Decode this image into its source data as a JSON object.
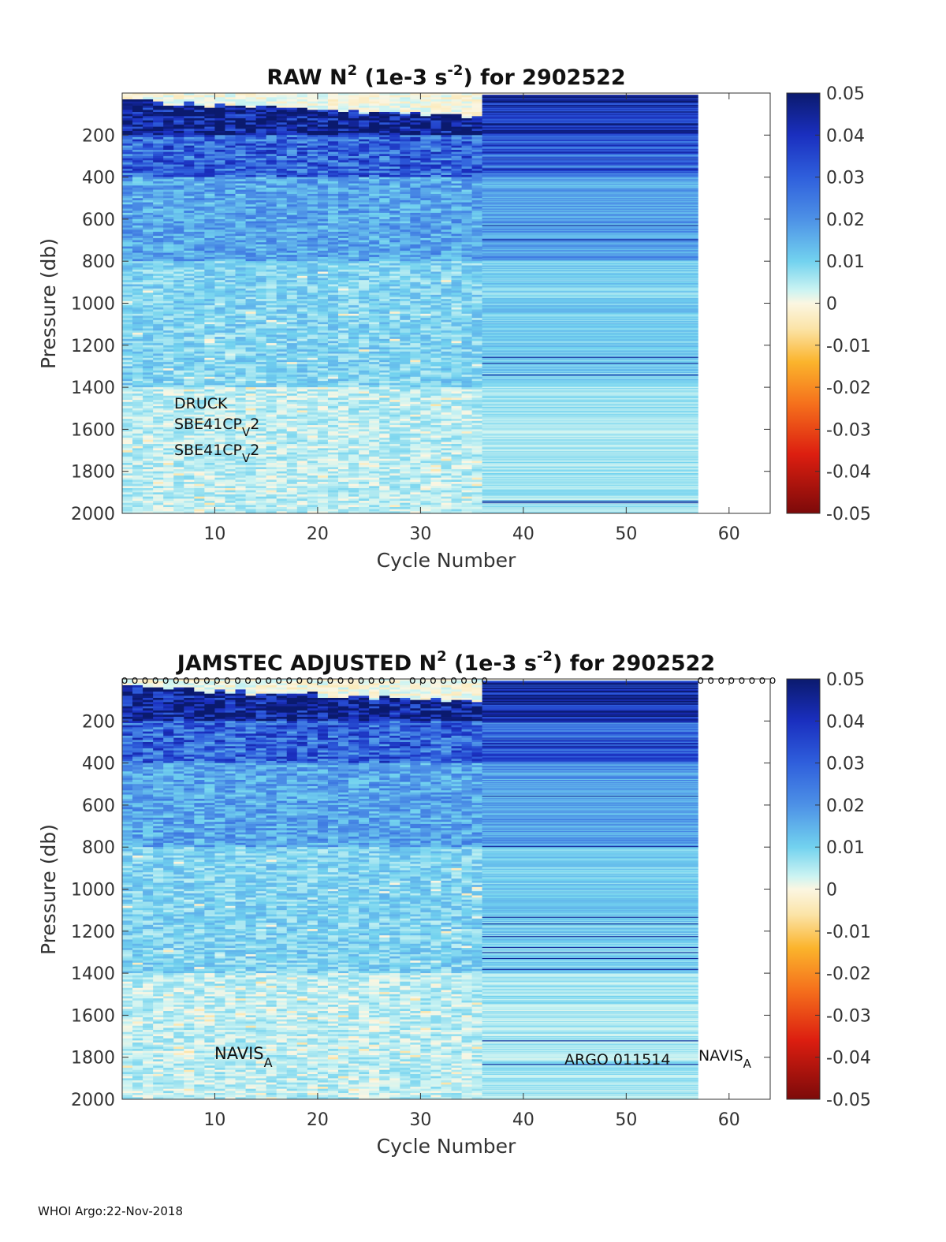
{
  "footer": "WHOI Argo:22-Nov-2018",
  "colorbar": {
    "ticks": [
      "0.05",
      "0.04",
      "0.03",
      "0.02",
      "0.01",
      "0",
      "-0.01",
      "-0.02",
      "-0.03",
      "-0.04",
      "-0.05"
    ],
    "range": [
      -0.05,
      0.05
    ]
  },
  "chart_data": [
    {
      "type": "heatmap",
      "title_prefix": "RAW N",
      "title_sup1": "2",
      "title_mid": " (1e-3 s",
      "title_sup2": "-2",
      "title_suffix": ") for 2902522",
      "xlabel": "Cycle Number",
      "ylabel": "Pressure (db)",
      "xlim": [
        1,
        64
      ],
      "ylim": [
        0,
        2000
      ],
      "xticks": [
        "10",
        "20",
        "30",
        "40",
        "50",
        "60"
      ],
      "yticks": [
        "200",
        "400",
        "600",
        "800",
        "1000",
        "1200",
        "1400",
        "1600",
        "1800",
        "2000"
      ],
      "data_cycles": [
        1,
        57
      ],
      "annotations": {
        "sensor1": "DRUCK",
        "sensor2_base": "SBE41CP",
        "sensor2_sub": "V",
        "sensor2_tail": "2",
        "sensor3_base": "SBE41CP",
        "sensor3_sub": "V",
        "sensor3_tail": "2"
      }
    },
    {
      "type": "heatmap",
      "title_prefix": "JAMSTEC  ADJUSTED N",
      "title_sup1": "2",
      "title_mid": " (1e-3 s",
      "title_sup2": "-2",
      "title_suffix": ") for 2902522",
      "xlabel": "Cycle Number",
      "ylabel": "Pressure (db)",
      "xlim": [
        1,
        64
      ],
      "ylim": [
        0,
        2000
      ],
      "xticks": [
        "10",
        "20",
        "30",
        "40",
        "50",
        "60"
      ],
      "yticks": [
        "200",
        "400",
        "600",
        "800",
        "1000",
        "1200",
        "1400",
        "1600",
        "1800",
        "2000"
      ],
      "data_cycles": [
        1,
        57
      ],
      "qc_marker": "o",
      "qc_marker_runs": [
        [
          1,
          27
        ],
        [
          29,
          36
        ],
        [
          57,
          64
        ]
      ],
      "annotations": {
        "left_base": "NAVIS",
        "left_sub": "A",
        "right_base": "NAVIS",
        "right_sub": "A",
        "center": "ARGO 011514"
      }
    }
  ]
}
